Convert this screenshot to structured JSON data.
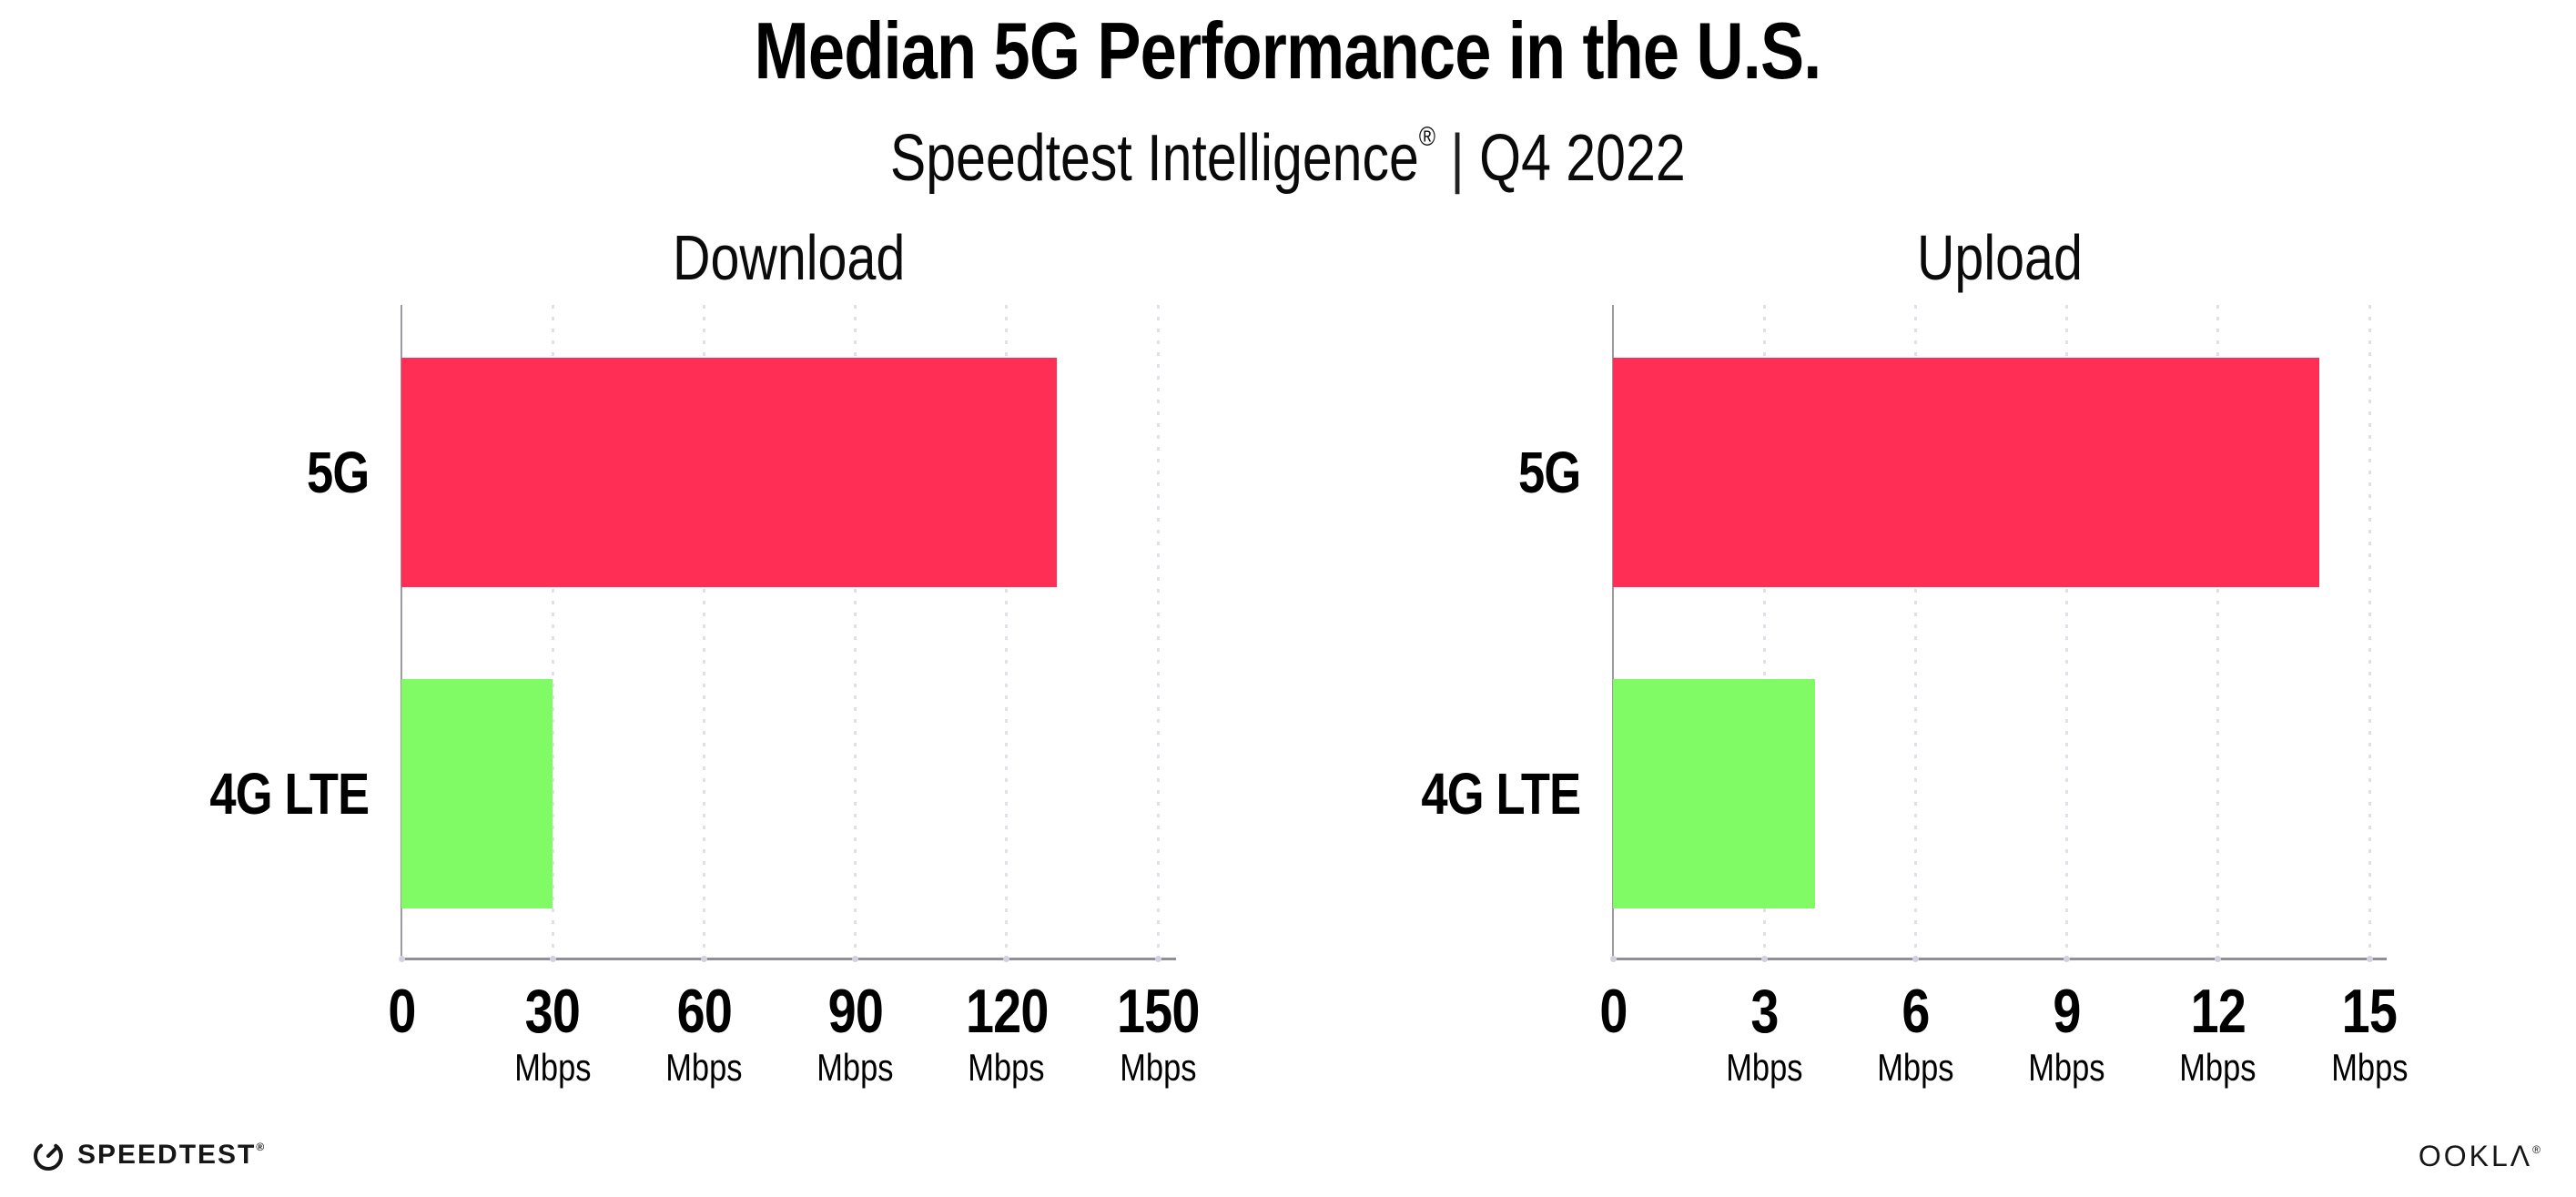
{
  "header": {
    "title": "Median 5G Performance in the U.S.",
    "subtitle_brand": "Speedtest Intelligence",
    "subtitle_reg": "®",
    "subtitle_sep": "|",
    "subtitle_period": "Q4 2022"
  },
  "colors": {
    "bar_5g": "#FF2E55",
    "bar_4g_lte": "#80FB66",
    "gridline": "#E0E0E9",
    "axis_line": "#8F8F95",
    "text": "#000000"
  },
  "chart_data": [
    {
      "type": "bar",
      "orientation": "horizontal",
      "title": "Download",
      "categories": [
        "5G",
        "4G LTE"
      ],
      "values": [
        130,
        30
      ],
      "unit": "Mbps",
      "xticks": [
        0,
        30,
        60,
        90,
        120,
        150
      ],
      "tick_unit_label": "Mbps",
      "xlim": [
        0,
        153
      ],
      "grid": "dotted-vertical",
      "legend": "none",
      "bar_colors": [
        "#FF2E55",
        "#80FB66"
      ]
    },
    {
      "type": "bar",
      "orientation": "horizontal",
      "title": "Upload",
      "categories": [
        "5G",
        "4G LTE"
      ],
      "values": [
        14,
        4
      ],
      "unit": "Mbps",
      "xticks": [
        0,
        3,
        6,
        9,
        12,
        15
      ],
      "tick_unit_label": "Mbps",
      "xlim": [
        0,
        15.3
      ],
      "grid": "dotted-vertical",
      "legend": "none",
      "bar_colors": [
        "#FF2E55",
        "#80FB66"
      ]
    }
  ],
  "footer": {
    "speedtest_label": "SPEEDTEST",
    "speedtest_reg": "®",
    "ookla_label": "OOKLΛ",
    "ookla_reg": "®"
  }
}
